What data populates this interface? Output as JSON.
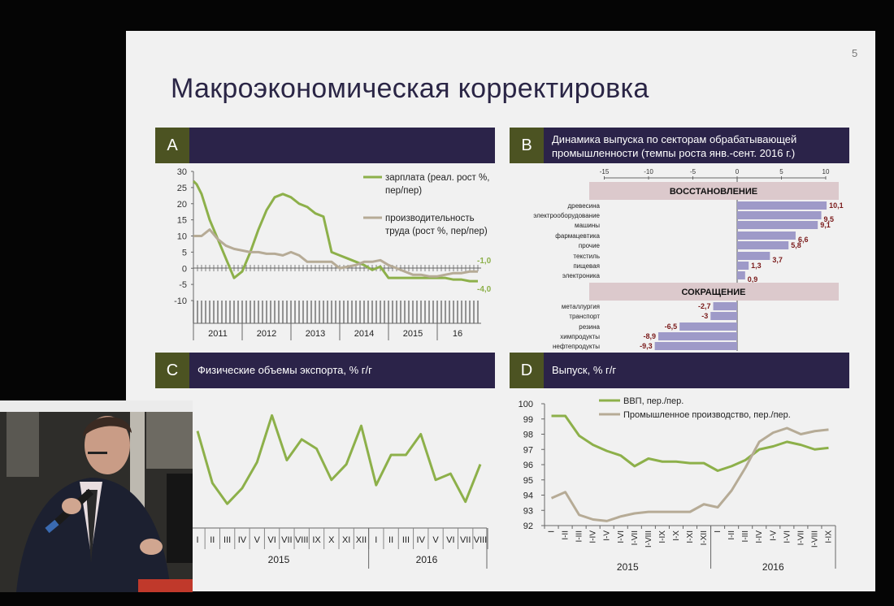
{
  "page_number": "5",
  "title": "Макроэкономическая корректировка",
  "panels": {
    "a": {
      "letter": "A",
      "title": ""
    },
    "b": {
      "letter": "B",
      "title_line1": "Динамика выпуска по секторам обрабатывающей",
      "title_line2": "промышленности (темпы роста янв.-сент. 2016 г.)"
    },
    "c": {
      "letter": "C",
      "title": "Физические объемы экспорта, %  г/г"
    },
    "d": {
      "letter": "D",
      "title": "Выпуск, % г/г"
    }
  },
  "chart_data": [
    {
      "type": "line",
      "panel": "A",
      "yticks": [
        "30",
        "25",
        "20",
        "15",
        "10",
        "5",
        "0",
        "-5",
        "-10"
      ],
      "ylim": [
        -10,
        30
      ],
      "xlabels": [
        "2011",
        "2012",
        "2013",
        "2014",
        "2015",
        "16"
      ],
      "end_labels": [
        "-1,0",
        "-4,0"
      ],
      "colors": {
        "wage": "#8db04a",
        "productivity": "#b6ab96"
      },
      "series": [
        {
          "name": "зарплата (реал. рост %, пер/пер)",
          "legend_line1": "зарплата (реал. рост %,",
          "legend_line2": "пер/пер)",
          "t": [
            0,
            0.8,
            2,
            4,
            6,
            8,
            10,
            11,
            12,
            14,
            16,
            18,
            20,
            22,
            24,
            26,
            28,
            30,
            32,
            34,
            36,
            38,
            40,
            42,
            44,
            46,
            48,
            50,
            52,
            54,
            56,
            58,
            60,
            62,
            64,
            66,
            68,
            69,
            70
          ],
          "values": [
            27,
            26,
            23,
            15,
            9,
            3,
            -3,
            -2,
            -1,
            5,
            12,
            18,
            22,
            23,
            22,
            20,
            19,
            17,
            16,
            5,
            4,
            3,
            2,
            1,
            -0.5,
            0.5,
            -3,
            -3,
            -3,
            -3,
            -3,
            -3,
            -3,
            -3,
            -3.5,
            -3.5,
            -4,
            -4,
            -4
          ]
        },
        {
          "name": "производительность труда (рост %, пер/пер)",
          "legend_line1": "производительность",
          "legend_line2": "труда (рост %, пер/пер)",
          "t": [
            0,
            2,
            4,
            6,
            8,
            10,
            12,
            14,
            16,
            18,
            20,
            22,
            24,
            26,
            28,
            30,
            32,
            34,
            36,
            38,
            40,
            42,
            44,
            46,
            48,
            50,
            52,
            54,
            56,
            58,
            60,
            62,
            64,
            66,
            68,
            70
          ],
          "values": [
            10,
            10,
            12,
            9,
            7,
            6,
            5.5,
            5,
            5,
            4.5,
            4.5,
            4,
            5,
            4,
            2,
            2,
            2,
            2,
            0,
            0.5,
            1,
            2,
            2,
            2.5,
            1,
            0,
            -1,
            -2,
            -2,
            -2.5,
            -2.5,
            -2,
            -1.5,
            -1.5,
            -1,
            -1
          ]
        }
      ]
    },
    {
      "type": "bar",
      "orientation": "horizontal",
      "panel": "B",
      "xticks": [
        "-15",
        "-10",
        "-5",
        "0",
        "5",
        "10"
      ],
      "xlim": [
        -15,
        10
      ],
      "bar_color": "#9e9ac8",
      "groups": [
        {
          "label": "ВОССТАНОВЛЕНИЕ",
          "categories": [
            "древесина",
            "электрооборудование",
            "машины",
            "фармацевтика",
            "прочие",
            "текстиль",
            "пищевая",
            "электроника"
          ],
          "values": [
            10.1,
            9.5,
            9.1,
            6.6,
            5.8,
            3.7,
            1.3,
            0.9
          ],
          "labels": [
            "10,1",
            "9,5",
            "9,1",
            "6,6",
            "5,8",
            "3,7",
            "1,3",
            "0,9"
          ]
        },
        {
          "label": "СОКРАЩЕНИЕ",
          "categories": [
            "металлургия",
            "транспорт",
            "резина",
            "химпродукты",
            "нефтепродукты"
          ],
          "values": [
            -2.7,
            -3,
            -6.5,
            -8.9,
            -9.3
          ],
          "labels": [
            "-2,7",
            "-3",
            "-6,5",
            "-8,9",
            "-9,3"
          ]
        }
      ]
    },
    {
      "type": "line",
      "panel": "C",
      "categories": [
        "I",
        "II",
        "III",
        "IV",
        "V",
        "VI",
        "VII",
        "VIII",
        "IX",
        "X",
        "XI",
        "XII",
        "I",
        "II",
        "III",
        "IV",
        "V",
        "VI",
        "VII",
        "VIII"
      ],
      "years": [
        "2015",
        "2016"
      ],
      "color": "#8db04a",
      "values": [
        80,
        30,
        10,
        25,
        50,
        95,
        52,
        72,
        63,
        33,
        48,
        85,
        28,
        57,
        57,
        77,
        33,
        39,
        12,
        48
      ]
    },
    {
      "type": "line",
      "panel": "D",
      "yticks": [
        "100",
        "99",
        "98",
        "97",
        "96",
        "95",
        "94",
        "93",
        "92"
      ],
      "ylim": [
        92,
        100
      ],
      "categories": [
        "I",
        "I-II",
        "I-III",
        "I-IV",
        "I-V",
        "I-VI",
        "I-VII",
        "I-VIII",
        "I-IX",
        "I-X",
        "I-XI",
        "I-XII",
        "I",
        "I-II",
        "I-III",
        "I-IV",
        "I-V",
        "I-VI",
        "I-VII",
        "I-VIII",
        "I-IX"
      ],
      "years": [
        "2015",
        "2016"
      ],
      "series": [
        {
          "name": "ВВП, пер./пер.",
          "color": "#8db04a",
          "values": [
            99.2,
            99.2,
            97.9,
            97.3,
            96.9,
            96.6,
            95.9,
            96.4,
            96.2,
            96.2,
            96.1,
            96.1,
            95.6,
            95.9,
            96.3,
            97.0,
            97.2,
            97.5,
            97.3,
            97.0,
            97.1
          ]
        },
        {
          "name": "Промышленное производство, пер./пер.",
          "color": "#b6ab96",
          "values": [
            93.8,
            94.2,
            92.7,
            92.4,
            92.3,
            92.6,
            92.8,
            92.9,
            92.9,
            92.9,
            92.9,
            93.4,
            93.2,
            94.3,
            95.8,
            97.5,
            98.1,
            98.4,
            98.0,
            98.2,
            98.3
          ]
        }
      ]
    }
  ]
}
